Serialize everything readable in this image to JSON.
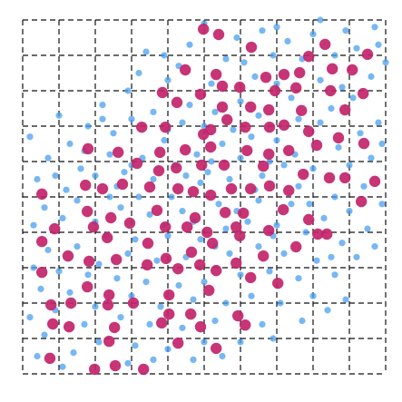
{
  "chart_data": {
    "type": "scatter",
    "xlim": [
      0,
      10
    ],
    "ylim": [
      0,
      10
    ],
    "xticks": [
      0,
      1,
      2,
      3,
      4,
      5,
      6,
      7,
      8,
      9,
      10
    ],
    "yticks": [
      0,
      1,
      2,
      3,
      4,
      5,
      6,
      7,
      8,
      9,
      10
    ],
    "grid": true,
    "series": [
      {
        "color": "#4a9ff0",
        "x": [
          9.7,
          8.9,
          8.0,
          7.3,
          6.6,
          5.9,
          4.6,
          3.9,
          9.2,
          8.6,
          7.7,
          6.9,
          6.1,
          5.6,
          4.3,
          3.2,
          9.6,
          8.2,
          7.0,
          6.4,
          5.2,
          4.0,
          2.9,
          2.2,
          9.1,
          8.5,
          7.4,
          6.0,
          5.3,
          4.6,
          3.6,
          3.0,
          1.8,
          9.8,
          8.2,
          7.6,
          6.5,
          5.8,
          4.4,
          3.9,
          2.5,
          1.3,
          0.7,
          9.3,
          8.7,
          7.0,
          6.3,
          5.5,
          4.8,
          3.3,
          2.4,
          1.6,
          0.9,
          9.6,
          9.0,
          8.0,
          7.2,
          6.0,
          5.1,
          4.5,
          3.6,
          2.8,
          2.0,
          1.2,
          0.4,
          9.4,
          8.6,
          7.6,
          6.6,
          5.7,
          4.9,
          4.1,
          3.2,
          2.4,
          1.5,
          0.6,
          9.0,
          8.3,
          7.4,
          6.5,
          5.4,
          4.4,
          3.5,
          2.7,
          2.0,
          1.1,
          0.3,
          9.5,
          8.8,
          7.8,
          7.0,
          6.2,
          5.6,
          4.9,
          4.0,
          3.1,
          2.3,
          1.5,
          0.7,
          9.2,
          8.1,
          7.2,
          6.5,
          5.7,
          4.5,
          3.7,
          2.9,
          2.1,
          1.0,
          0.3,
          8.6,
          7.6,
          6.8,
          6.0,
          5.0,
          4.3,
          3.4,
          2.6,
          1.8,
          1.3,
          0.5,
          8.9,
          8.0,
          7.1,
          6.3,
          5.6,
          4.7,
          3.8,
          3.0,
          2.0,
          0.9,
          0.2,
          7.7,
          6.6,
          5.3,
          4.4,
          3.5,
          2.7,
          1.7,
          0.6,
          6.0,
          5.0,
          4.0,
          3.1,
          2.1,
          1.4,
          0.4,
          5.5,
          3.6,
          2.9,
          1.1,
          4.7,
          6.9,
          8.4,
          9.8,
          10.0,
          8.8,
          5.0,
          7.0,
          8.2,
          3.4,
          1.0,
          0.2,
          9.9,
          9.9,
          9.7,
          8.5,
          6.4,
          5.2,
          4.2,
          3.0,
          5.9,
          4.7,
          3.9,
          5.3,
          6.9,
          7.9,
          7.5,
          6.8,
          4.0,
          5.0,
          2.6,
          1.7,
          2.2
        ],
        "y": [
          9.8,
          9.7,
          9.6,
          9.4,
          9.7,
          9.5,
          9.3,
          9.0,
          9.2,
          9.0,
          8.9,
          9.0,
          8.8,
          8.9,
          8.7,
          8.5,
          8.4,
          8.3,
          8.2,
          8.4,
          8.2,
          8.3,
          8.0,
          7.6,
          7.8,
          7.5,
          7.8,
          7.7,
          7.4,
          7.6,
          7.4,
          7.2,
          7.0,
          7.1,
          7.1,
          7.2,
          7.3,
          6.9,
          7.1,
          6.6,
          6.8,
          6.5,
          6.1,
          6.8,
          6.4,
          6.6,
          6.7,
          6.5,
          6.2,
          6.1,
          6.2,
          5.8,
          5.6,
          6.1,
          5.9,
          5.8,
          5.9,
          6.1,
          5.7,
          5.6,
          5.5,
          5.7,
          5.6,
          5.2,
          5.5,
          5.3,
          5.0,
          5.3,
          5.6,
          5.5,
          5.4,
          5.0,
          5.0,
          5.0,
          4.9,
          4.7,
          4.6,
          4.4,
          4.8,
          4.9,
          4.8,
          4.6,
          4.5,
          4.7,
          4.3,
          4.4,
          4.2,
          4.1,
          3.7,
          4.0,
          4.2,
          4.3,
          4.1,
          3.8,
          3.9,
          3.8,
          3.9,
          3.6,
          3.5,
          3.3,
          3.2,
          3.4,
          3.6,
          3.4,
          3.3,
          3.2,
          3.4,
          3.1,
          2.9,
          3.0,
          2.8,
          2.7,
          2.9,
          2.8,
          2.6,
          2.5,
          2.6,
          2.7,
          2.8,
          2.3,
          2.4,
          2.1,
          2.2,
          2.0,
          2.2,
          2.0,
          2.1,
          1.9,
          2.2,
          1.9,
          1.8,
          1.6,
          1.5,
          1.4,
          1.5,
          1.3,
          1.4,
          1.6,
          1.4,
          1.1,
          0.9,
          0.9,
          0.7,
          0.8,
          0.9,
          0.6,
          0.5,
          0.5,
          0.4,
          0.3,
          0.2,
          0.4,
          1.0,
          1.8,
          9.3,
          8.8,
          8.1,
          9.9,
          9.8,
          10.0,
          9.1,
          7.3,
          6.7,
          6.5,
          4.8,
          3.6,
          3.3,
          5.2,
          6.0,
          5.9,
          5.9,
          4.6,
          4.3,
          4.2,
          3.6,
          3.9,
          4.8,
          6.2,
          6.0,
          6.9,
          7.0,
          5.3,
          6.3,
          7.2
        ]
      },
      {
        "color": "#c2246a",
        "x": [
          4.98,
          5.4,
          6.3,
          8.33,
          9.5,
          7.88,
          4.48,
          5.33,
          6.7,
          7.2,
          7.63,
          8.53,
          9.08,
          3.85,
          4.9,
          5.5,
          5.98,
          6.95,
          7.53,
          8.48,
          9.38,
          4.25,
          5.5,
          6.28,
          6.78,
          7.68,
          8.88,
          3.28,
          3.93,
          4.98,
          5.18,
          5.63,
          6.13,
          6.8,
          7.2,
          7.88,
          8.7,
          1.8,
          2.63,
          3.78,
          4.48,
          5.18,
          6.18,
          6.78,
          7.33,
          8.1,
          9.4,
          3.15,
          3.75,
          4.23,
          4.93,
          5.55,
          6.63,
          7.73,
          8.45,
          8.88,
          9.7,
          0.53,
          1.73,
          2.2,
          2.75,
          3.5,
          4.28,
          4.7,
          5.18,
          5.75,
          6.28,
          6.8,
          7.33,
          9.33,
          1.78,
          2.43,
          3.7,
          4.75,
          5.58,
          6.08,
          7.18,
          7.88,
          0.88,
          1.95,
          2.95,
          3.93,
          4.53,
          5.08,
          5.88,
          6.78,
          8.13,
          8.38,
          0.53,
          2.33,
          3.45,
          5.23,
          5.98,
          4.65,
          1.25,
          1.83,
          2.58,
          3.95,
          4.88,
          5.88,
          6.63,
          7.53,
          0.53,
          3.43,
          4.28,
          5.33,
          6.28,
          1.78,
          2.38,
          4.03,
          5.13,
          7.03,
          0.78,
          1.33,
          2.35,
          3.05,
          4.03,
          4.63,
          5.93,
          0.83,
          1.28,
          2.53,
          3.83,
          4.9,
          6.13,
          2.38,
          4.28,
          5.33,
          0.75,
          2.55,
          1.98,
          3.33
        ],
        "y": [
          9.74,
          9.59,
          9.23,
          9.31,
          9.03,
          8.97,
          8.59,
          8.46,
          8.38,
          8.46,
          8.51,
          8.62,
          8.59,
          7.95,
          7.9,
          8.13,
          8.1,
          8.0,
          8.08,
          8.0,
          7.92,
          7.67,
          7.54,
          7.54,
          7.46,
          7.44,
          7.46,
          6.97,
          6.97,
          6.77,
          6.9,
          7.18,
          6.97,
          6.97,
          7.03,
          6.85,
          6.67,
          6.36,
          6.26,
          6.26,
          6.33,
          6.41,
          6.31,
          6.21,
          6.31,
          6.46,
          6.51,
          5.95,
          5.74,
          5.82,
          5.9,
          5.9,
          5.87,
          5.64,
          5.54,
          5.54,
          5.44,
          5.08,
          5.33,
          5.23,
          5.36,
          5.28,
          5.23,
          5.15,
          5.05,
          5.23,
          5.23,
          5.31,
          5.18,
          4.87,
          4.59,
          4.41,
          4.62,
          4.41,
          4.56,
          4.54,
          4.64,
          4.36,
          4.1,
          4.15,
          4.26,
          4.15,
          4.15,
          4.0,
          4.15,
          4.05,
          3.95,
          3.95,
          3.74,
          3.85,
          3.69,
          3.69,
          3.9,
          3.44,
          3.33,
          3.18,
          3.23,
          3.26,
          3.08,
          3.13,
          3.33,
          3.59,
          2.87,
          3.08,
          2.97,
          2.92,
          2.72,
          2.46,
          2.23,
          2.23,
          2.36,
          2.56,
          1.95,
          2.0,
          1.95,
          2.0,
          1.69,
          1.69,
          1.64,
          1.41,
          1.33,
          1.31,
          1.44,
          1.33,
          1.38,
          0.92,
          0.87,
          0.72,
          0.44,
          0.23,
          0.13,
          0.13
        ]
      }
    ]
  }
}
